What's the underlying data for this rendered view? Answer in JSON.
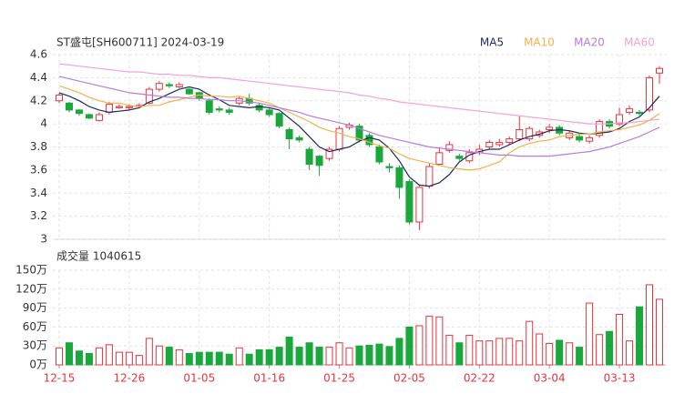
{
  "chart_data": [
    {
      "type": "candlestick",
      "title": "ST盛屯[SH600711] 2024-03-19",
      "up_color": "#e8333c",
      "down_color": "#1aa83c",
      "ylim": [
        3,
        4.6
      ],
      "yticks": [
        3,
        3.2,
        3.4,
        3.6,
        3.8,
        4,
        4.2,
        4.4,
        4.6
      ],
      "grid": true,
      "legend": "top-right",
      "open": [
        4.2,
        4.18,
        4.12,
        4.08,
        4.03,
        4.1,
        4.14,
        4.14,
        4.15,
        4.18,
        4.3,
        4.34,
        4.32,
        4.3,
        4.27,
        4.2,
        4.13,
        4.12,
        4.18,
        4.22,
        4.16,
        4.12,
        4.09,
        3.95,
        3.88,
        3.78,
        3.72,
        3.7,
        3.78,
        3.97,
        3.98,
        3.9,
        3.8,
        3.63,
        3.62,
        3.5,
        3.15,
        3.46,
        3.65,
        3.77,
        3.72,
        3.68,
        3.75,
        3.8,
        3.82,
        3.84,
        3.87,
        3.87,
        3.9,
        3.95,
        3.97,
        3.88,
        3.89,
        3.85,
        3.9,
        4.02,
        4.0,
        4.1,
        4.1,
        4.12,
        4.44
      ],
      "high": [
        4.27,
        4.19,
        4.13,
        4.09,
        4.1,
        4.19,
        4.17,
        4.17,
        4.18,
        4.32,
        4.37,
        4.36,
        4.36,
        4.31,
        4.28,
        4.22,
        4.15,
        4.14,
        4.24,
        4.26,
        4.18,
        4.14,
        4.1,
        3.97,
        3.9,
        3.8,
        3.73,
        3.8,
        3.98,
        4.01,
        4.0,
        3.92,
        3.82,
        3.66,
        3.64,
        3.52,
        3.47,
        3.66,
        3.8,
        3.85,
        3.74,
        3.78,
        3.82,
        3.86,
        3.87,
        3.89,
        4.07,
        3.98,
        3.95,
        4.0,
        3.99,
        3.94,
        3.91,
        3.9,
        4.04,
        4.04,
        4.14,
        4.16,
        4.12,
        4.42,
        4.5
      ],
      "low": [
        4.18,
        4.1,
        4.07,
        4.04,
        4.02,
        4.08,
        4.13,
        4.12,
        4.14,
        4.17,
        4.28,
        4.31,
        4.31,
        4.25,
        4.2,
        4.08,
        4.1,
        4.08,
        4.16,
        4.16,
        4.1,
        4.06,
        3.96,
        3.78,
        3.84,
        3.6,
        3.55,
        3.68,
        3.76,
        3.95,
        3.84,
        3.8,
        3.65,
        3.58,
        3.35,
        3.13,
        3.08,
        3.44,
        3.64,
        3.75,
        3.68,
        3.66,
        3.73,
        3.78,
        3.8,
        3.82,
        3.85,
        3.85,
        3.88,
        3.92,
        3.9,
        3.86,
        3.84,
        3.83,
        3.88,
        3.96,
        3.98,
        4.08,
        4.07,
        4.1,
        4.35
      ],
      "close": [
        4.25,
        4.12,
        4.09,
        4.05,
        4.08,
        4.17,
        4.15,
        4.15,
        4.16,
        4.3,
        4.35,
        4.33,
        4.34,
        4.26,
        4.22,
        4.1,
        4.12,
        4.1,
        4.22,
        4.18,
        4.12,
        4.08,
        3.98,
        3.87,
        3.86,
        3.65,
        3.64,
        3.78,
        3.96,
        3.99,
        3.86,
        3.82,
        3.67,
        3.62,
        3.45,
        3.15,
        3.45,
        3.63,
        3.75,
        3.82,
        3.7,
        3.75,
        3.78,
        3.84,
        3.84,
        3.87,
        3.95,
        3.96,
        3.93,
        3.97,
        3.92,
        3.92,
        3.86,
        3.88,
        4.02,
        3.98,
        4.08,
        4.13,
        4.09,
        4.4,
        4.48
      ],
      "series": [
        {
          "name": "MA5",
          "color": "#1c2a5e",
          "values": [
            4.27,
            4.24,
            4.2,
            4.15,
            4.12,
            4.1,
            4.11,
            4.12,
            4.14,
            4.19,
            4.22,
            4.26,
            4.3,
            4.32,
            4.3,
            4.25,
            4.21,
            4.16,
            4.15,
            4.14,
            4.15,
            4.14,
            4.12,
            4.05,
            3.98,
            3.89,
            3.8,
            3.76,
            3.78,
            3.8,
            3.85,
            3.88,
            3.86,
            3.79,
            3.68,
            3.54,
            3.47,
            3.46,
            3.49,
            3.56,
            3.67,
            3.73,
            3.76,
            3.78,
            3.78,
            3.82,
            3.86,
            3.89,
            3.91,
            3.94,
            3.95,
            3.94,
            3.92,
            3.91,
            3.92,
            3.93,
            3.96,
            4.02,
            4.06,
            4.14,
            4.24
          ]
        },
        {
          "name": "MA10",
          "color": "#f2b24a",
          "values": [
            4.33,
            4.3,
            4.27,
            4.23,
            4.2,
            4.18,
            4.18,
            4.16,
            4.15,
            4.16,
            4.16,
            4.19,
            4.21,
            4.23,
            4.25,
            4.24,
            4.24,
            4.23,
            4.24,
            4.22,
            4.2,
            4.18,
            4.14,
            4.1,
            4.06,
            4.02,
            3.97,
            3.94,
            3.92,
            3.89,
            3.87,
            3.84,
            3.81,
            3.79,
            3.74,
            3.7,
            3.68,
            3.66,
            3.64,
            3.62,
            3.61,
            3.6,
            3.61,
            3.64,
            3.67,
            3.75,
            3.8,
            3.83,
            3.85,
            3.86,
            3.89,
            3.9,
            3.91,
            3.91,
            3.93,
            3.94,
            3.95,
            3.97,
            3.99,
            4.03,
            4.09
          ]
        },
        {
          "name": "MA20",
          "color": "#b67be0",
          "values": [
            4.41,
            4.39,
            4.37,
            4.35,
            4.33,
            4.31,
            4.29,
            4.27,
            4.26,
            4.25,
            4.24,
            4.23,
            4.23,
            4.22,
            4.22,
            4.21,
            4.21,
            4.2,
            4.2,
            4.19,
            4.18,
            4.16,
            4.14,
            4.12,
            4.1,
            4.07,
            4.05,
            4.03,
            4.01,
            3.99,
            3.96,
            3.93,
            3.9,
            3.88,
            3.86,
            3.84,
            3.82,
            3.8,
            3.79,
            3.78,
            3.77,
            3.76,
            3.75,
            3.74,
            3.73,
            3.73,
            3.72,
            3.72,
            3.72,
            3.72,
            3.73,
            3.74,
            3.75,
            3.76,
            3.78,
            3.8,
            3.83,
            3.86,
            3.89,
            3.93,
            3.97
          ]
        },
        {
          "name": "MA60",
          "color": "#f4a3d2",
          "values": [
            4.52,
            4.51,
            4.5,
            4.49,
            4.48,
            4.47,
            4.46,
            4.45,
            4.45,
            4.44,
            4.43,
            4.43,
            4.42,
            4.42,
            4.41,
            4.4,
            4.4,
            4.39,
            4.38,
            4.37,
            4.36,
            4.35,
            4.34,
            4.33,
            4.32,
            4.31,
            4.3,
            4.29,
            4.28,
            4.27,
            4.25,
            4.24,
            4.22,
            4.21,
            4.19,
            4.18,
            4.17,
            4.16,
            4.15,
            4.14,
            4.13,
            4.12,
            4.11,
            4.1,
            4.09,
            4.08,
            4.07,
            4.06,
            4.05,
            4.04,
            4.03,
            4.02,
            4.01,
            4.0,
            4.0,
            4.0,
            4.01,
            4.01,
            4.02,
            4.03,
            4.04
          ]
        }
      ]
    },
    {
      "type": "bar",
      "title": "成交量 1040615",
      "ylim": [
        0,
        150
      ],
      "yticks": [
        {
          "value": 0,
          "label": "0万"
        },
        {
          "value": 30,
          "label": "30万"
        },
        {
          "value": 60,
          "label": "60万"
        },
        {
          "value": 90,
          "label": "90万"
        },
        {
          "value": 120,
          "label": "120万"
        },
        {
          "value": 150,
          "label": "150万"
        }
      ],
      "grid": true,
      "categories": [
        "12-15",
        null,
        null,
        null,
        null,
        null,
        null,
        "12-26",
        null,
        null,
        null,
        null,
        null,
        null,
        "01-05",
        null,
        null,
        null,
        null,
        null,
        null,
        "01-16",
        null,
        null,
        null,
        null,
        null,
        null,
        "01-25",
        null,
        null,
        null,
        null,
        null,
        null,
        "02-05",
        null,
        null,
        null,
        null,
        null,
        null,
        "02-22",
        null,
        null,
        null,
        null,
        null,
        null,
        "03-04",
        null,
        null,
        null,
        null,
        null,
        null,
        "03-13",
        null,
        null,
        null,
        null
      ],
      "values": [
        27,
        35,
        22,
        18,
        27,
        32,
        20,
        20,
        15,
        42,
        30,
        28,
        24,
        18,
        20,
        20,
        20,
        17,
        27,
        17,
        24,
        24,
        28,
        44,
        28,
        35,
        28,
        28,
        35,
        27,
        30,
        31,
        33,
        29,
        42,
        60,
        62,
        77,
        76,
        47,
        35,
        47,
        38,
        38,
        42,
        42,
        38,
        69,
        49,
        34,
        39,
        35,
        28,
        98,
        48,
        53,
        80,
        38,
        92,
        127,
        104
      ]
    }
  ]
}
